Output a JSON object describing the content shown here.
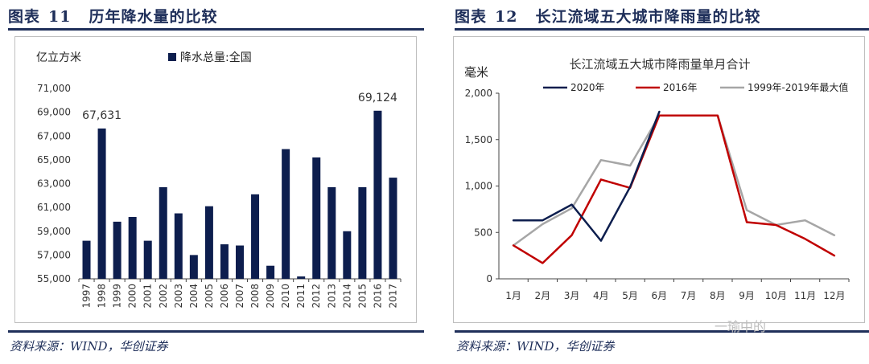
{
  "left_panel": {
    "figure_label": "图表",
    "figure_number": "11",
    "figure_title": "历年降水量的比较",
    "source": "资料来源：WIND，华创证券"
  },
  "right_panel": {
    "figure_label": "图表",
    "figure_number": "12",
    "figure_title": "长江流域五大城市降雨量的比较",
    "source": "资料来源：WIND，华创证券"
  },
  "watermark": "一瑜中的",
  "colors": {
    "navy": "#1f2f5a",
    "bar": "#0d1e4e",
    "series_2020": "#0d1e4e",
    "series_2016": "#c00000",
    "series_max": "#a6a6a6"
  },
  "chart_data": [
    {
      "type": "bar",
      "title": "",
      "ylabel": "亿立方米",
      "legend": [
        "降水总量:全国"
      ],
      "ylim": [
        55000,
        71000
      ],
      "yticks": [
        55000,
        57000,
        59000,
        61000,
        63000,
        65000,
        67000,
        69000,
        71000
      ],
      "ytick_labels": [
        "55,000",
        "57,000",
        "59,000",
        "61,000",
        "63,000",
        "65,000",
        "67,000",
        "69,000",
        "71,000"
      ],
      "categories": [
        "1997",
        "1998",
        "1999",
        "2000",
        "2001",
        "2002",
        "2003",
        "2004",
        "2005",
        "2006",
        "2007",
        "2008",
        "2009",
        "2010",
        "2011",
        "2012",
        "2013",
        "2014",
        "2015",
        "2016",
        "2017"
      ],
      "values": [
        58200,
        67631,
        59800,
        60200,
        58200,
        62700,
        60500,
        57000,
        61100,
        57900,
        57800,
        62100,
        56100,
        65900,
        55200,
        65200,
        62700,
        59000,
        62700,
        69124,
        63500
      ],
      "annotations": [
        {
          "category": "1998",
          "text": "67,631"
        },
        {
          "category": "2016",
          "text": "69,124"
        }
      ]
    },
    {
      "type": "line",
      "title": "长江流域五大城市降雨量单月合计",
      "ylabel": "毫米",
      "ylim": [
        0,
        2000
      ],
      "yticks": [
        0,
        500,
        1000,
        1500,
        2000
      ],
      "ytick_labels": [
        "0",
        "500",
        "1,000",
        "1,500",
        "2,000"
      ],
      "categories": [
        "1月",
        "2月",
        "3月",
        "4月",
        "5月",
        "6月",
        "7月",
        "8月",
        "9月",
        "10月",
        "11月",
        "12月"
      ],
      "series": [
        {
          "name": "2020年",
          "color": "#0d1e4e",
          "values": [
            630,
            630,
            800,
            410,
            990,
            1800,
            null,
            null,
            null,
            null,
            null,
            null
          ]
        },
        {
          "name": "2016年",
          "color": "#c00000",
          "values": [
            360,
            170,
            470,
            1070,
            980,
            1760,
            1760,
            1760,
            610,
            580,
            430,
            250
          ]
        },
        {
          "name": "1999年-2019年最大值",
          "color": "#a6a6a6",
          "values": [
            360,
            590,
            760,
            1280,
            1220,
            1760,
            1760,
            1760,
            740,
            580,
            630,
            470
          ]
        }
      ]
    }
  ]
}
